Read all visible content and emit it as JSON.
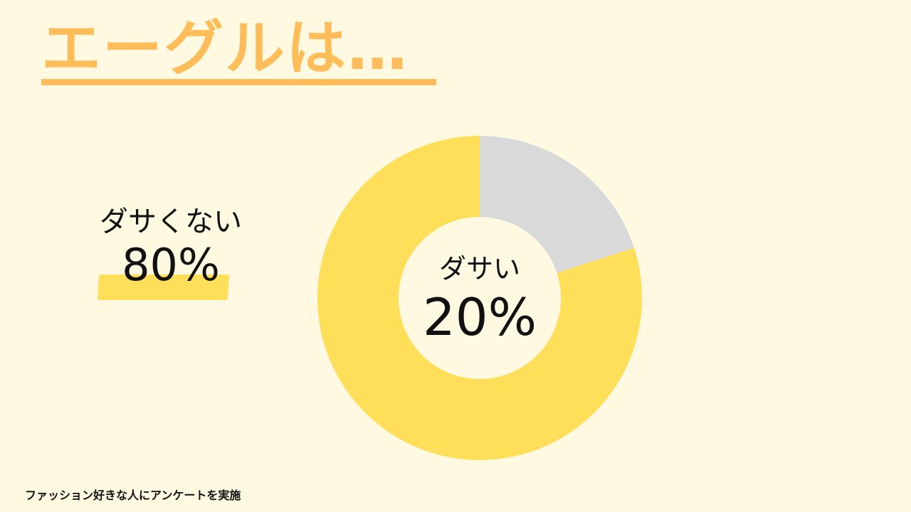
{
  "title": "エーグルは…",
  "footnote": "ファッション好きな人にアンケートを実施",
  "colors": {
    "background": "#FFF9E2",
    "title": "#FFBD59",
    "highlight": "#FFDE59"
  },
  "chart_data": {
    "type": "pie",
    "donut": true,
    "start": "top",
    "direction": "clockwise",
    "slices": [
      {
        "label": "ダサい",
        "value": 20,
        "display": "20%",
        "color": "#D9D9D9"
      },
      {
        "label": "ダサくない",
        "value": 80,
        "display": "80%",
        "color": "#FFDE59"
      }
    ]
  }
}
